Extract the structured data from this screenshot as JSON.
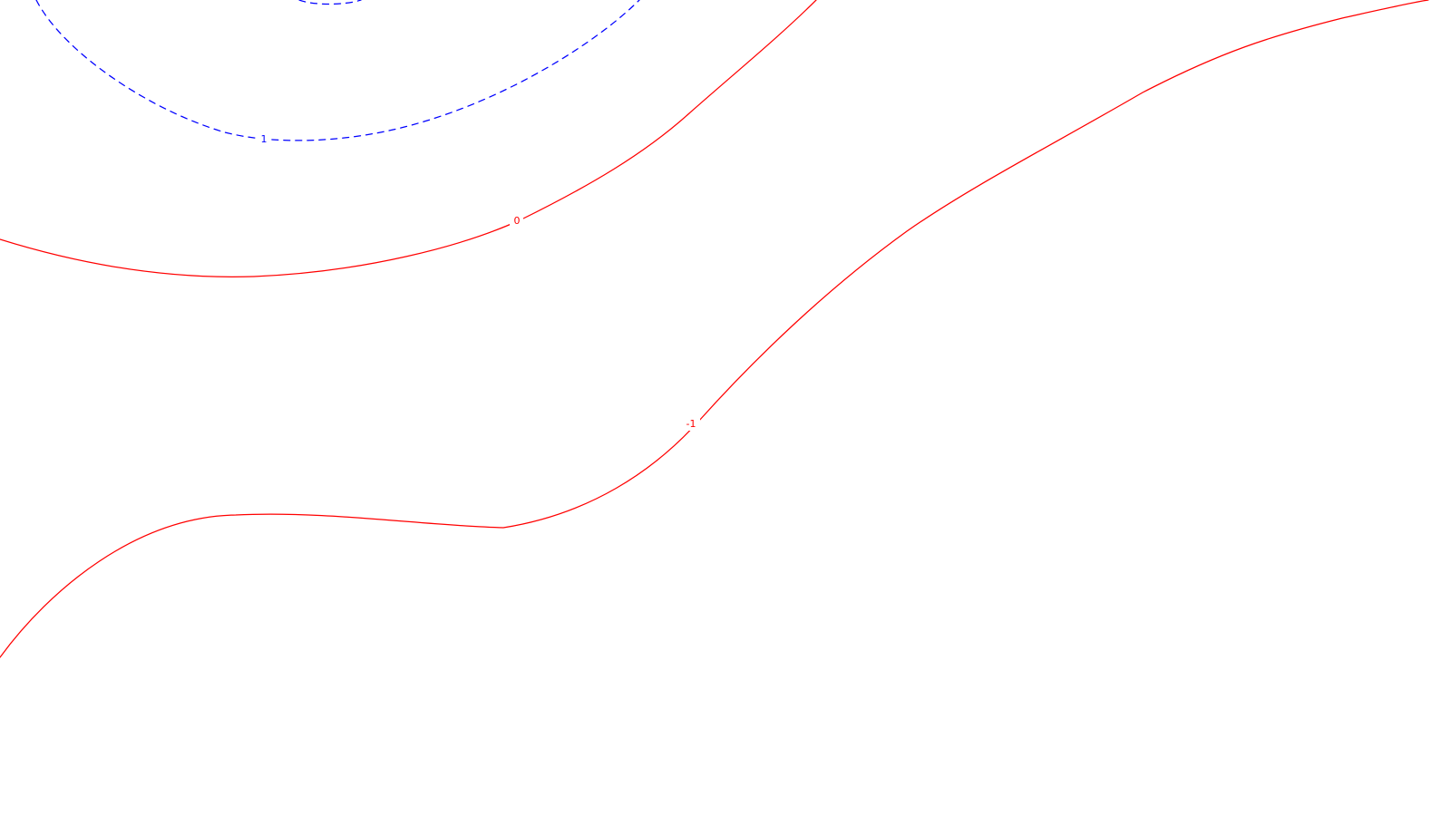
{
  "chart_data": {
    "type": "contour",
    "title": "",
    "xlabel": "",
    "ylabel": "",
    "grid": false,
    "legend": "none",
    "contours": [
      {
        "level": 1,
        "label": "1",
        "color": "#0000ff",
        "style": "dashed"
      },
      {
        "level": 0,
        "label": "0",
        "color": "#ff0000",
        "style": "solid"
      },
      {
        "level": -1,
        "label": "-1",
        "color": "#ff0000",
        "style": "solid"
      }
    ]
  }
}
